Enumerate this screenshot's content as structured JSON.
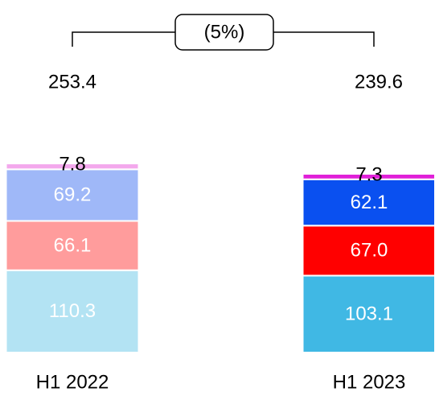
{
  "chart_data": {
    "type": "stacked-bar",
    "annotation": "(5%)",
    "categories": [
      "H1 2022",
      "H1 2023"
    ],
    "totals": [
      253.4,
      239.6
    ],
    "series": [
      {
        "color": [
          "#b3e3f3",
          "#40b8e4"
        ],
        "values": [
          110.3,
          103.1
        ]
      },
      {
        "color": [
          "#ff9c9c",
          "#ff0000"
        ],
        "values": [
          66.1,
          67.0
        ],
        "value_labels": [
          "66.1",
          "67.0"
        ]
      },
      {
        "color": [
          "#9fb8f8",
          "#0a50f0"
        ],
        "values": [
          69.2,
          62.1
        ]
      },
      {
        "color": [
          "#f3a8ec",
          "#e020d8"
        ],
        "values": [
          7.8,
          7.3
        ]
      }
    ]
  }
}
